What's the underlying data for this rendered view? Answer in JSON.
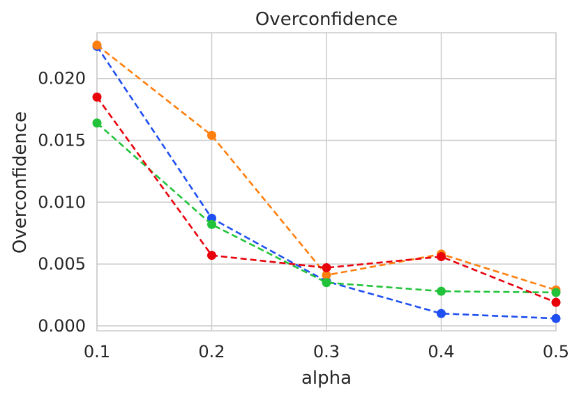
{
  "chart_data": {
    "type": "line",
    "title": "Overconfidence",
    "xlabel": "alpha",
    "ylabel": "Overconfidence",
    "xlim": [
      0.1,
      0.5
    ],
    "ylim": [
      -0.0004,
      0.0237
    ],
    "x_ticks": [
      "0.1",
      "0.2",
      "0.3",
      "0.4",
      "0.5"
    ],
    "y_ticks": [
      "0.000",
      "0.005",
      "0.010",
      "0.015",
      "0.020"
    ],
    "y_tick_values": [
      0.0,
      0.005,
      0.01,
      0.015,
      0.02
    ],
    "grid": true,
    "line_style": "dashed",
    "x": [
      0.1,
      0.2,
      0.3,
      0.4,
      0.5
    ],
    "series": [
      {
        "color": "#1f4ff0",
        "values": [
          0.0226,
          0.0087,
          0.0036,
          0.001,
          0.0006
        ]
      },
      {
        "color": "#ff7f0e",
        "values": [
          0.0227,
          0.0154,
          0.0041,
          0.0058,
          0.0029
        ]
      },
      {
        "color": "#22c33a",
        "values": [
          0.0164,
          0.0082,
          0.0035,
          0.0028,
          0.0027
        ]
      },
      {
        "color": "#e8000b",
        "values": [
          0.0185,
          0.0057,
          0.0047,
          0.0056,
          0.0019
        ]
      }
    ]
  }
}
